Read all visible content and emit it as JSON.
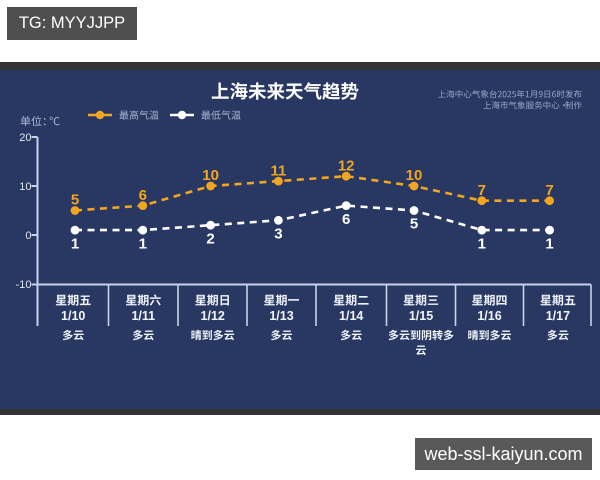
{
  "watermarks": {
    "top_left": "TG: MYYJJPP",
    "bottom_right": "web-ssl-kaiyun.com"
  },
  "header": {
    "title": "上海未来天气趋势",
    "source_line1": "上海中心气象台2025年1月9日6时发布",
    "source_line2": "上海市气象服务中心·制作"
  },
  "chart_data": {
    "type": "line",
    "title": "上海未来天气趋势",
    "unit_label": "单位：℃",
    "categories": [
      "1/10",
      "1/11",
      "1/12",
      "1/13",
      "1/14",
      "1/15",
      "1/16",
      "1/17"
    ],
    "weekdays": [
      "星期五",
      "星期六",
      "星期日",
      "星期一",
      "星期二",
      "星期三",
      "星期四",
      "星期五"
    ],
    "weather": [
      "多云",
      "多云",
      "晴到多云",
      "多云",
      "多云",
      "多云到阴转多云",
      "晴到多云",
      "多云"
    ],
    "series": [
      {
        "name": "最高气温",
        "color": "#f2a51f",
        "values": [
          5,
          6,
          10,
          11,
          12,
          10,
          7,
          7
        ]
      },
      {
        "name": "最低气温",
        "color": "#ffffff",
        "values": [
          1,
          1,
          2,
          3,
          6,
          5,
          1,
          1
        ]
      }
    ],
    "yticks": [
      20,
      10,
      0,
      -10
    ],
    "ylim": [
      -10,
      20
    ],
    "line_style": "dashed",
    "grid": false,
    "legend_position": "top"
  },
  "forecast_days": [
    {
      "weekday": "星期五",
      "date": "1/10",
      "weather": "多云"
    },
    {
      "weekday": "星期六",
      "date": "1/11",
      "weather": "多云"
    },
    {
      "weekday": "星期日",
      "date": "1/12",
      "weather": "晴到多云"
    },
    {
      "weekday": "星期一",
      "date": "1/13",
      "weather": "多云"
    },
    {
      "weekday": "星期二",
      "date": "1/14",
      "weather": "多云"
    },
    {
      "weekday": "星期三",
      "date": "1/15",
      "weather": "多云到阴转多云"
    },
    {
      "weekday": "星期四",
      "date": "1/16",
      "weather": "晴到多云"
    },
    {
      "weekday": "星期五",
      "date": "1/17",
      "weather": "多云"
    }
  ],
  "colors": {
    "background": "#283862",
    "letterbox_strip": "#333333",
    "high_series": "#f2a51f",
    "low_series": "#ffffff",
    "axis": "#c9d2ea",
    "tick_label": "#e3e8f5",
    "muted_text": "#aeb8d4",
    "source_text": "#9aaac8",
    "table_text": "#f2f5fc",
    "watermark_top_bg": "#4f4f4f",
    "watermark_bottom_bg": "#595959"
  }
}
